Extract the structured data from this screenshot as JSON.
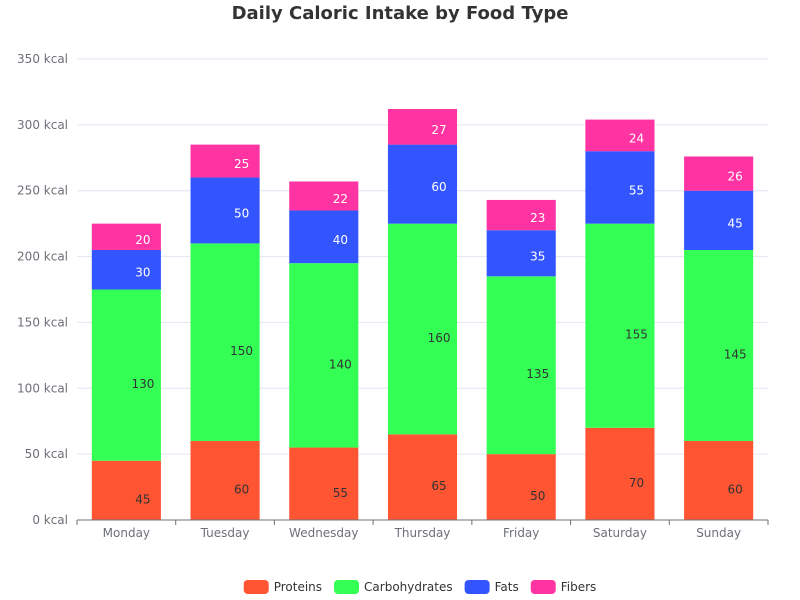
{
  "chart_data": {
    "type": "bar",
    "stacked": true,
    "title": "Daily Caloric Intake by Food Type",
    "xlabel": "",
    "ylabel": "",
    "categories": [
      "Monday",
      "Tuesday",
      "Wednesday",
      "Thursday",
      "Friday",
      "Saturday",
      "Sunday"
    ],
    "ylim": [
      0,
      350
    ],
    "yticks": [
      0,
      50,
      100,
      150,
      200,
      250,
      300,
      350
    ],
    "y_unit": "kcal",
    "grid": true,
    "legend_position": "bottom",
    "series": [
      {
        "name": "Proteins",
        "color": "#ff5533",
        "label_color": "#333333",
        "values": [
          45,
          60,
          55,
          65,
          50,
          70,
          60
        ]
      },
      {
        "name": "Carbohydrates",
        "color": "#33ff55",
        "label_color": "#333333",
        "values": [
          130,
          150,
          140,
          160,
          135,
          155,
          145
        ]
      },
      {
        "name": "Fats",
        "color": "#3355ff",
        "label_color": "#ffffff",
        "values": [
          30,
          50,
          40,
          60,
          35,
          55,
          45
        ]
      },
      {
        "name": "Fibers",
        "color": "#ff33a1",
        "label_color": "#ffffff",
        "values": [
          20,
          25,
          22,
          27,
          23,
          24,
          26
        ]
      }
    ]
  }
}
